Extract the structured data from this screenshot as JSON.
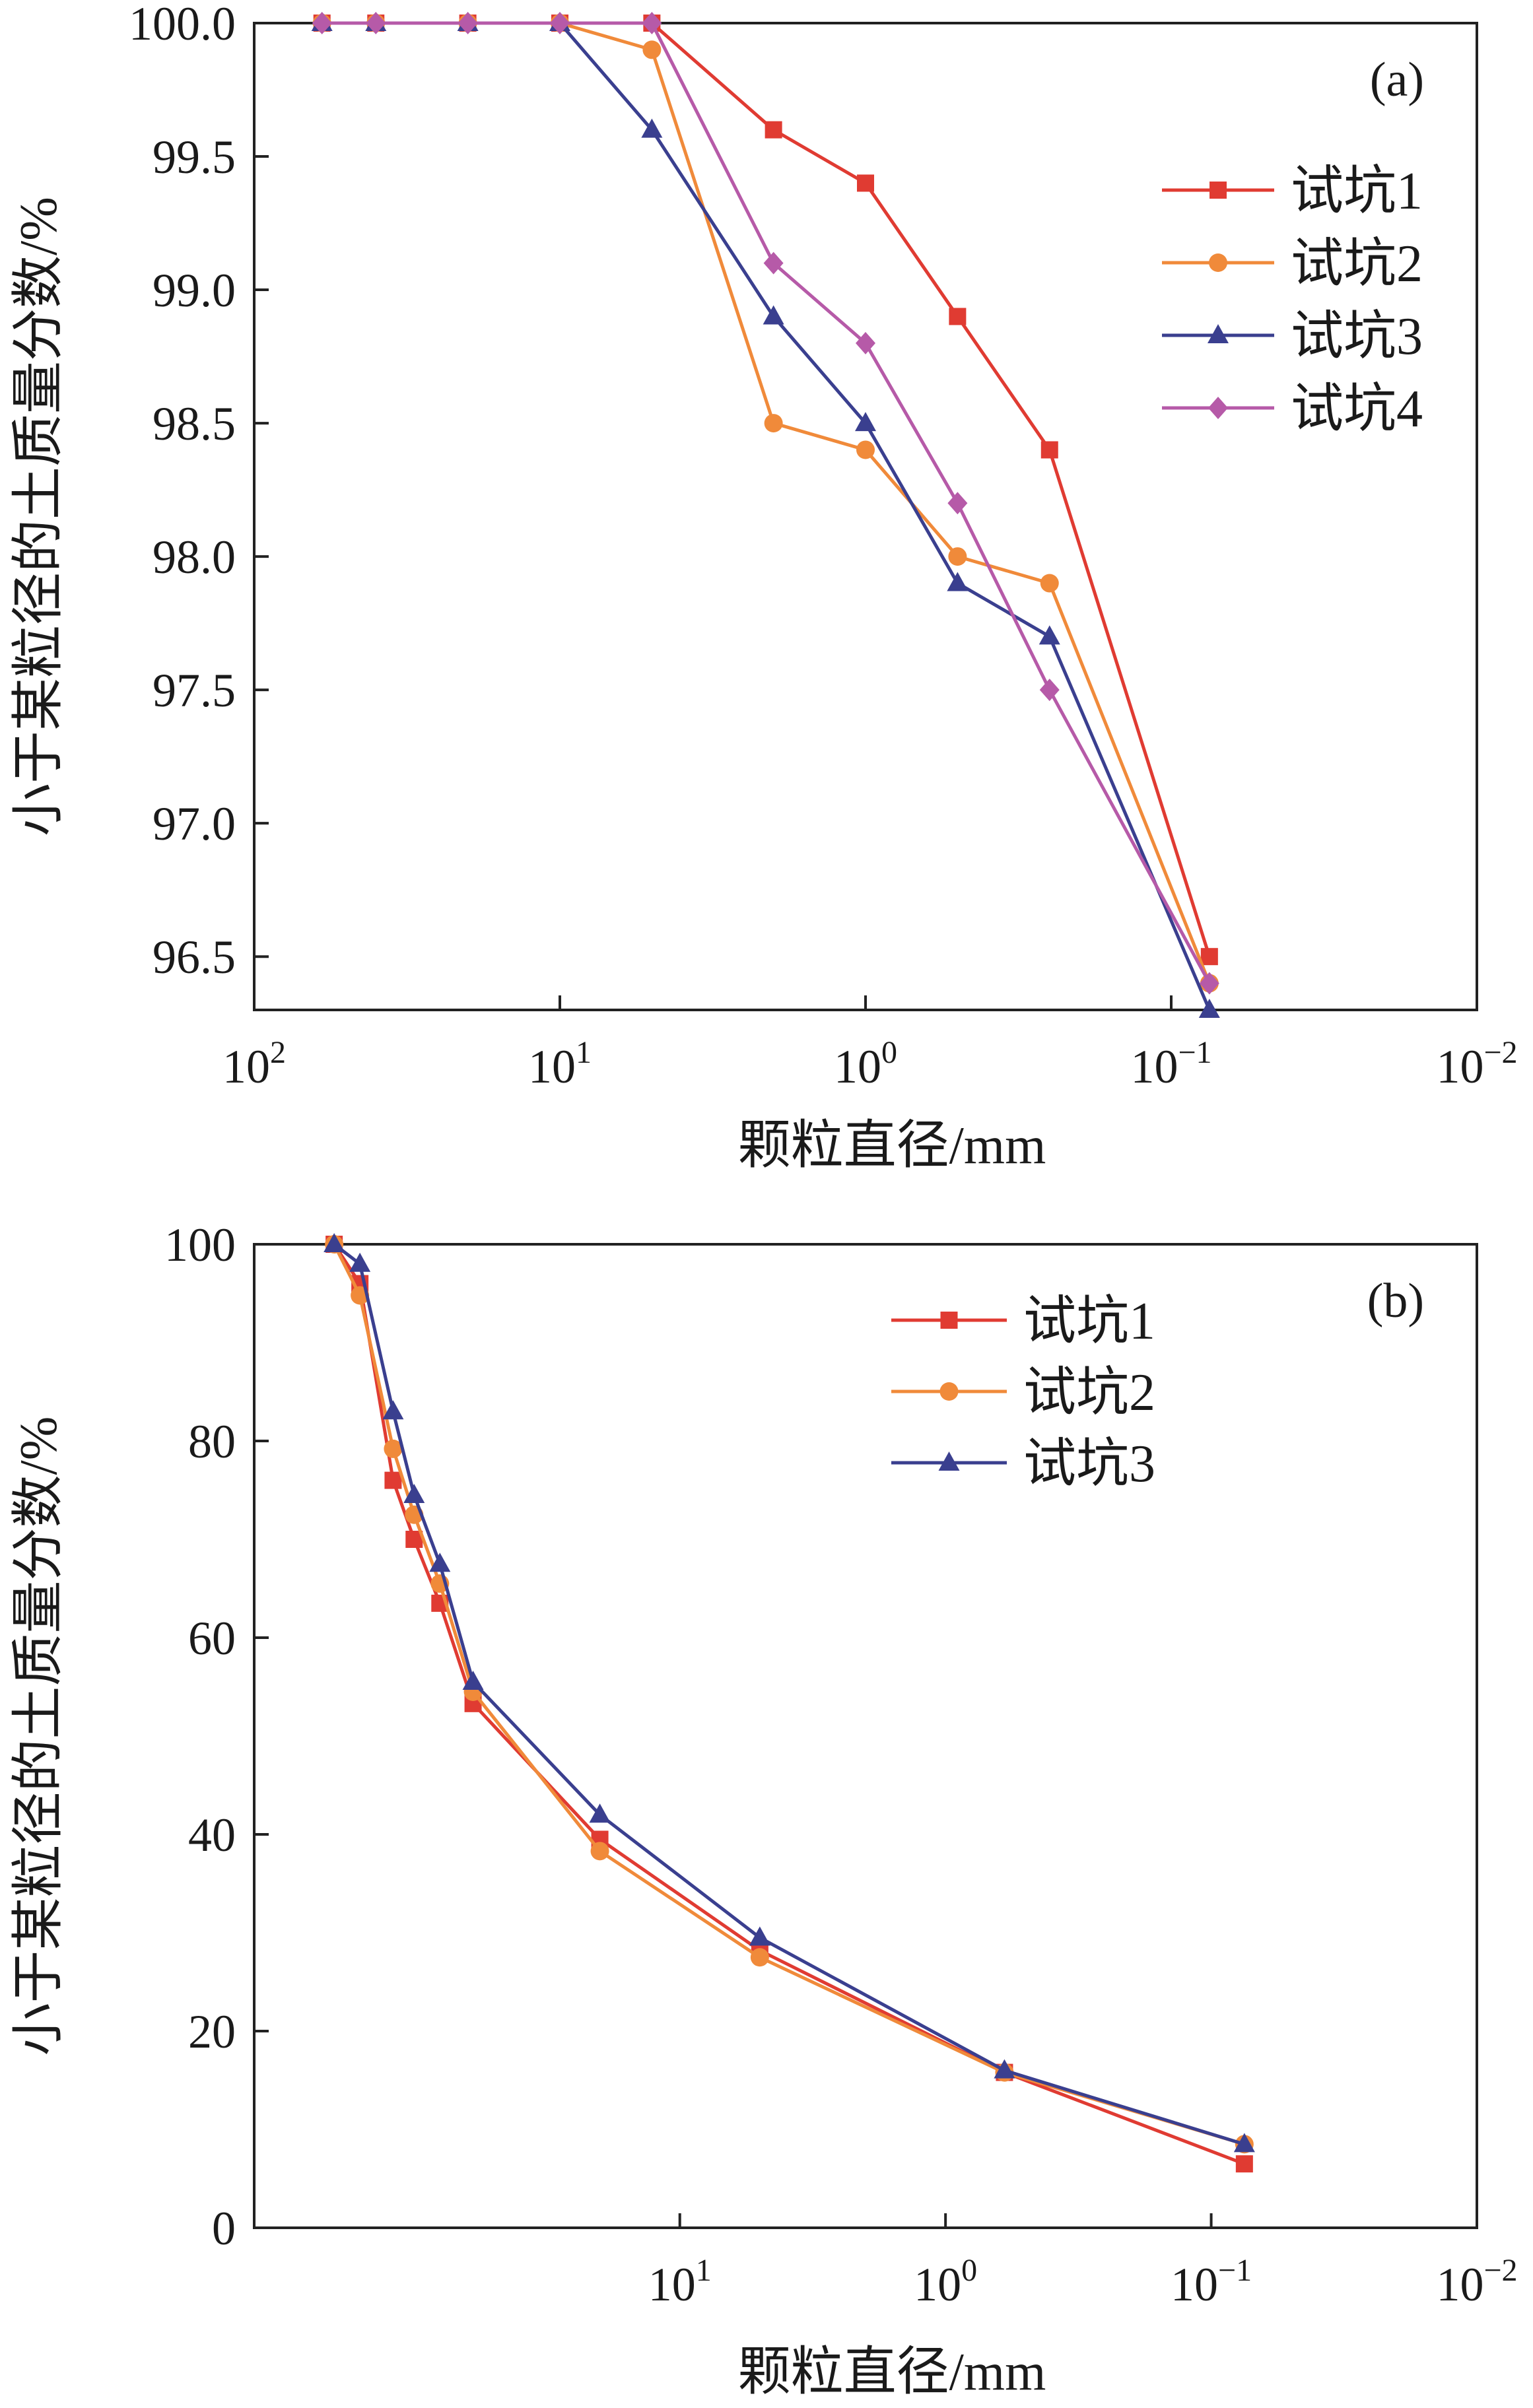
{
  "chart_data": [
    {
      "type": "line",
      "panel_label": "(a)",
      "xlabel": "颗粒直径/mm",
      "ylabel": "小于某粒径的土质量分数/%",
      "xscale": "log-reversed",
      "xlim": [
        100,
        0.01
      ],
      "ylim": [
        96.3,
        100.0
      ],
      "xticks": [
        {
          "value": 100,
          "base": "10",
          "exp": "2"
        },
        {
          "value": 10,
          "base": "10",
          "exp": "1"
        },
        {
          "value": 1,
          "base": "10",
          "exp": "0"
        },
        {
          "value": 0.1,
          "base": "10",
          "exp": "−1"
        },
        {
          "value": 0.01,
          "base": "10",
          "exp": "−2"
        }
      ],
      "yticks": [
        {
          "value": 96.5,
          "label": "96.5"
        },
        {
          "value": 97.0,
          "label": "97.0"
        },
        {
          "value": 97.5,
          "label": "97.5"
        },
        {
          "value": 98.0,
          "label": "98.0"
        },
        {
          "value": 98.5,
          "label": "98.5"
        },
        {
          "value": 99.0,
          "label": "99.0"
        },
        {
          "value": 99.5,
          "label": "99.5"
        },
        {
          "value": 100.0,
          "label": "100.0"
        }
      ],
      "legend_position": "top-right",
      "series": [
        {
          "name": "试坑1",
          "color": "#e03b32",
          "marker": "square",
          "x": [
            60,
            40,
            20,
            10,
            5,
            2,
            1,
            0.5,
            0.25,
            0.075
          ],
          "y": [
            100,
            100,
            100,
            100,
            100,
            99.6,
            99.4,
            98.9,
            98.4,
            96.5
          ]
        },
        {
          "name": "试坑2",
          "color": "#f08a3a",
          "marker": "circle",
          "x": [
            60,
            40,
            20,
            10,
            5,
            2,
            1,
            0.5,
            0.25,
            0.075
          ],
          "y": [
            100,
            100,
            100,
            100,
            99.9,
            98.5,
            98.4,
            98.0,
            97.9,
            96.4
          ]
        },
        {
          "name": "试坑3",
          "color": "#3a3f8f",
          "marker": "triangle",
          "x": [
            60,
            40,
            20,
            10,
            5,
            2,
            1,
            0.5,
            0.25,
            0.075
          ],
          "y": [
            100,
            100,
            100,
            100,
            99.6,
            98.9,
            98.5,
            97.9,
            97.7,
            96.3
          ]
        },
        {
          "name": "试坑4",
          "color": "#b65aa8",
          "marker": "diamond",
          "x": [
            60,
            40,
            20,
            10,
            5,
            2,
            1,
            0.5,
            0.25,
            0.075
          ],
          "y": [
            100,
            100,
            100,
            100,
            100,
            99.1,
            98.8,
            98.2,
            97.5,
            96.4
          ]
        }
      ]
    },
    {
      "type": "line",
      "panel_label": "(b)",
      "xlabel": "颗粒直径/mm",
      "ylabel": "小于某粒径的土质量分数/%",
      "xscale": "log-reversed",
      "xlim": [
        400,
        0.01
      ],
      "ylim": [
        0,
        100
      ],
      "xticks": [
        {
          "value": 10,
          "base": "10",
          "exp": "1"
        },
        {
          "value": 1,
          "base": "10",
          "exp": "0"
        },
        {
          "value": 0.1,
          "base": "10",
          "exp": "−1"
        },
        {
          "value": 0.01,
          "base": "10",
          "exp": "−2"
        }
      ],
      "yticks": [
        {
          "value": 0,
          "label": "0"
        },
        {
          "value": 20,
          "label": "20"
        },
        {
          "value": 40,
          "label": "40"
        },
        {
          "value": 60,
          "label": "60"
        },
        {
          "value": 80,
          "label": "80"
        },
        {
          "value": 100,
          "label": "100"
        }
      ],
      "legend_position": "top-right",
      "series": [
        {
          "name": "试坑1",
          "color": "#e03b32",
          "marker": "square",
          "x": [
            200,
            160,
            120,
            100,
            80,
            60,
            20,
            5,
            0.6,
            0.075
          ],
          "y": [
            100,
            96,
            76,
            70,
            63.5,
            53.3,
            39.5,
            28.2,
            15.8,
            6.5
          ]
        },
        {
          "name": "试坑2",
          "color": "#f08a3a",
          "marker": "circle",
          "x": [
            200,
            160,
            120,
            100,
            80,
            60,
            20,
            5,
            0.6,
            0.075
          ],
          "y": [
            100,
            94.8,
            79.2,
            72.5,
            65.5,
            54.5,
            38.3,
            27.5,
            15.8,
            8.5
          ]
        },
        {
          "name": "试坑3",
          "color": "#3a3f8f",
          "marker": "triangle",
          "x": [
            200,
            160,
            120,
            100,
            80,
            60,
            20,
            5,
            0.6,
            0.075
          ],
          "y": [
            100,
            98,
            83,
            74.5,
            67.5,
            55.5,
            42,
            29.5,
            16,
            8.5
          ]
        }
      ]
    }
  ]
}
